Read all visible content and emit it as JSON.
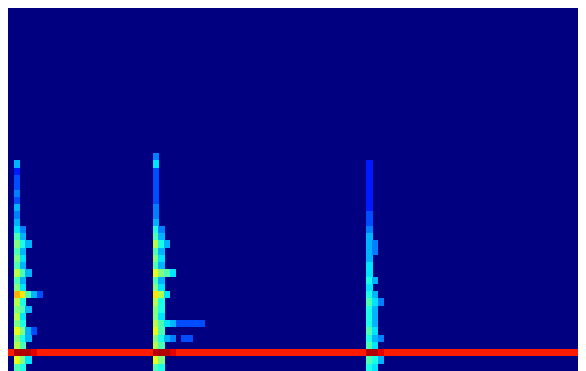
{
  "chart_data": {
    "type": "heatmap",
    "xlim": [
      0,
      100
    ],
    "ylim": [
      0,
      100
    ],
    "tick_labels": false,
    "zlim": [
      0,
      1
    ],
    "cell_width": 1,
    "cell_height": 2,
    "cells": [
      [
        0.5,
        5,
        0.85
      ],
      [
        1.5,
        5,
        0.95
      ],
      [
        2.5,
        5,
        0.95
      ],
      [
        3.5,
        5,
        0.95
      ],
      [
        4.5,
        5,
        0.9
      ],
      [
        5.5,
        5,
        0.85
      ],
      [
        6.5,
        5,
        0.85
      ],
      [
        7.5,
        5,
        0.85
      ],
      [
        8.5,
        5,
        0.85
      ],
      [
        9.5,
        5,
        0.85
      ],
      [
        10.5,
        5,
        0.85
      ],
      [
        11.5,
        5,
        0.85
      ],
      [
        12.5,
        5,
        0.85
      ],
      [
        13.5,
        5,
        0.85
      ],
      [
        14.5,
        5,
        0.85
      ],
      [
        15.5,
        5,
        0.85
      ],
      [
        16.5,
        5,
        0.85
      ],
      [
        17.5,
        5,
        0.85
      ],
      [
        18.5,
        5,
        0.85
      ],
      [
        19.5,
        5,
        0.85
      ],
      [
        20.5,
        5,
        0.85
      ],
      [
        21.5,
        5,
        0.85
      ],
      [
        22.5,
        5,
        0.85
      ],
      [
        23.5,
        5,
        0.85
      ],
      [
        24.5,
        5,
        0.85
      ],
      [
        25.5,
        5,
        0.95
      ],
      [
        26.5,
        5,
        0.95
      ],
      [
        27.5,
        5,
        0.95
      ],
      [
        28.5,
        5,
        0.9
      ],
      [
        29.5,
        5,
        0.85
      ],
      [
        30.5,
        5,
        0.85
      ],
      [
        31.5,
        5,
        0.85
      ],
      [
        32.5,
        5,
        0.85
      ],
      [
        33.5,
        5,
        0.85
      ],
      [
        34.5,
        5,
        0.85
      ],
      [
        35.5,
        5,
        0.85
      ],
      [
        36.5,
        5,
        0.85
      ],
      [
        37.5,
        5,
        0.85
      ],
      [
        38.5,
        5,
        0.85
      ],
      [
        39.5,
        5,
        0.85
      ],
      [
        40.5,
        5,
        0.85
      ],
      [
        41.5,
        5,
        0.85
      ],
      [
        42.5,
        5,
        0.85
      ],
      [
        43.5,
        5,
        0.85
      ],
      [
        44.5,
        5,
        0.85
      ],
      [
        45.5,
        5,
        0.85
      ],
      [
        46.5,
        5,
        0.85
      ],
      [
        47.5,
        5,
        0.85
      ],
      [
        48.5,
        5,
        0.85
      ],
      [
        49.5,
        5,
        0.85
      ],
      [
        50.5,
        5,
        0.85
      ],
      [
        51.5,
        5,
        0.85
      ],
      [
        52.5,
        5,
        0.85
      ],
      [
        53.5,
        5,
        0.85
      ],
      [
        54.5,
        5,
        0.85
      ],
      [
        55.5,
        5,
        0.85
      ],
      [
        56.5,
        5,
        0.85
      ],
      [
        57.5,
        5,
        0.85
      ],
      [
        58.5,
        5,
        0.85
      ],
      [
        59.5,
        5,
        0.85
      ],
      [
        60.5,
        5,
        0.85
      ],
      [
        61.5,
        5,
        0.85
      ],
      [
        62.5,
        5,
        0.95
      ],
      [
        63.5,
        5,
        0.95
      ],
      [
        64.5,
        5,
        0.9
      ],
      [
        65.5,
        5,
        0.85
      ],
      [
        66.5,
        5,
        0.85
      ],
      [
        67.5,
        5,
        0.85
      ],
      [
        68.5,
        5,
        0.85
      ],
      [
        69.5,
        5,
        0.85
      ],
      [
        70.5,
        5,
        0.85
      ],
      [
        71.5,
        5,
        0.85
      ],
      [
        72.5,
        5,
        0.85
      ],
      [
        73.5,
        5,
        0.85
      ],
      [
        74.5,
        5,
        0.85
      ],
      [
        75.5,
        5,
        0.85
      ],
      [
        76.5,
        5,
        0.85
      ],
      [
        77.5,
        5,
        0.85
      ],
      [
        78.5,
        5,
        0.85
      ],
      [
        79.5,
        5,
        0.85
      ],
      [
        80.5,
        5,
        0.85
      ],
      [
        81.5,
        5,
        0.85
      ],
      [
        82.5,
        5,
        0.85
      ],
      [
        83.5,
        5,
        0.85
      ],
      [
        84.5,
        5,
        0.85
      ],
      [
        85.5,
        5,
        0.85
      ],
      [
        86.5,
        5,
        0.85
      ],
      [
        87.5,
        5,
        0.85
      ],
      [
        88.5,
        5,
        0.85
      ],
      [
        89.5,
        5,
        0.85
      ],
      [
        90.5,
        5,
        0.85
      ],
      [
        91.5,
        5,
        0.85
      ],
      [
        92.5,
        5,
        0.85
      ],
      [
        93.5,
        5,
        0.85
      ],
      [
        94.5,
        5,
        0.85
      ],
      [
        95.5,
        5,
        0.85
      ],
      [
        96.5,
        5,
        0.85
      ],
      [
        97.5,
        5,
        0.85
      ],
      [
        98.5,
        5,
        0.85
      ],
      [
        99.5,
        5,
        0.85
      ],
      [
        1.5,
        1,
        0.45
      ],
      [
        1.5,
        3,
        0.6
      ],
      [
        1.5,
        7,
        0.55
      ],
      [
        1.5,
        9,
        0.5
      ],
      [
        1.5,
        11,
        0.6
      ],
      [
        1.5,
        13,
        0.5
      ],
      [
        1.5,
        15,
        0.55
      ],
      [
        1.5,
        17,
        0.5
      ],
      [
        1.5,
        19,
        0.55
      ],
      [
        1.5,
        21,
        0.7
      ],
      [
        1.5,
        23,
        0.5
      ],
      [
        1.5,
        25,
        0.45
      ],
      [
        1.5,
        27,
        0.55
      ],
      [
        1.5,
        29,
        0.45
      ],
      [
        1.5,
        31,
        0.5
      ],
      [
        1.5,
        33,
        0.45
      ],
      [
        1.5,
        35,
        0.5
      ],
      [
        1.5,
        37,
        0.45
      ],
      [
        1.5,
        39,
        0.35
      ],
      [
        1.5,
        41,
        0.3
      ],
      [
        1.5,
        43,
        0.25
      ],
      [
        1.5,
        45,
        0.3
      ],
      [
        1.5,
        47,
        0.2
      ],
      [
        1.5,
        49,
        0.25
      ],
      [
        1.5,
        51,
        0.2
      ],
      [
        1.5,
        53,
        0.2
      ],
      [
        1.5,
        55,
        0.15
      ],
      [
        1.5,
        57,
        0.3
      ],
      [
        2.5,
        1,
        0.4
      ],
      [
        2.5,
        3,
        0.5
      ],
      [
        2.5,
        7,
        0.45
      ],
      [
        2.5,
        9,
        0.4
      ],
      [
        2.5,
        11,
        0.5
      ],
      [
        2.5,
        13,
        0.4
      ],
      [
        2.5,
        15,
        0.35
      ],
      [
        2.5,
        17,
        0.45
      ],
      [
        2.5,
        19,
        0.4
      ],
      [
        2.5,
        21,
        0.65
      ],
      [
        2.5,
        23,
        0.35
      ],
      [
        2.5,
        25,
        0.3
      ],
      [
        2.5,
        27,
        0.45
      ],
      [
        2.5,
        29,
        0.3
      ],
      [
        2.5,
        31,
        0.35
      ],
      [
        2.5,
        33,
        0.3
      ],
      [
        2.5,
        35,
        0.4
      ],
      [
        2.5,
        37,
        0.3
      ],
      [
        2.5,
        39,
        0.25
      ],
      [
        3.5,
        3,
        0.35
      ],
      [
        3.5,
        9,
        0.3
      ],
      [
        3.5,
        11,
        0.3
      ],
      [
        3.5,
        17,
        0.3
      ],
      [
        3.5,
        21,
        0.45
      ],
      [
        3.5,
        27,
        0.3
      ],
      [
        3.5,
        35,
        0.3
      ],
      [
        4.5,
        11,
        0.2
      ],
      [
        4.5,
        21,
        0.3
      ],
      [
        5.5,
        21,
        0.2
      ],
      [
        25.5,
        1,
        0.45
      ],
      [
        25.5,
        3,
        0.6
      ],
      [
        25.5,
        7,
        0.55
      ],
      [
        25.5,
        9,
        0.5
      ],
      [
        25.5,
        11,
        0.6
      ],
      [
        25.5,
        13,
        0.55
      ],
      [
        25.5,
        15,
        0.5
      ],
      [
        25.5,
        17,
        0.5
      ],
      [
        25.5,
        19,
        0.55
      ],
      [
        25.5,
        21,
        0.65
      ],
      [
        25.5,
        23,
        0.5
      ],
      [
        25.5,
        25,
        0.45
      ],
      [
        25.5,
        27,
        0.6
      ],
      [
        25.5,
        29,
        0.45
      ],
      [
        25.5,
        31,
        0.5
      ],
      [
        25.5,
        33,
        0.45
      ],
      [
        25.5,
        35,
        0.55
      ],
      [
        25.5,
        37,
        0.45
      ],
      [
        25.5,
        39,
        0.4
      ],
      [
        25.5,
        41,
        0.3
      ],
      [
        25.5,
        43,
        0.25
      ],
      [
        25.5,
        45,
        0.25
      ],
      [
        25.5,
        47,
        0.2
      ],
      [
        25.5,
        49,
        0.2
      ],
      [
        25.5,
        51,
        0.2
      ],
      [
        25.5,
        53,
        0.2
      ],
      [
        25.5,
        55,
        0.2
      ],
      [
        25.5,
        57,
        0.35
      ],
      [
        25.5,
        59,
        0.25
      ],
      [
        26.5,
        1,
        0.4
      ],
      [
        26.5,
        3,
        0.5
      ],
      [
        26.5,
        7,
        0.45
      ],
      [
        26.5,
        9,
        0.4
      ],
      [
        26.5,
        11,
        0.45
      ],
      [
        26.5,
        13,
        0.45
      ],
      [
        26.5,
        15,
        0.35
      ],
      [
        26.5,
        17,
        0.4
      ],
      [
        26.5,
        19,
        0.4
      ],
      [
        26.5,
        21,
        0.55
      ],
      [
        26.5,
        23,
        0.35
      ],
      [
        26.5,
        25,
        0.3
      ],
      [
        26.5,
        27,
        0.5
      ],
      [
        26.5,
        29,
        0.3
      ],
      [
        26.5,
        31,
        0.35
      ],
      [
        26.5,
        33,
        0.3
      ],
      [
        26.5,
        35,
        0.4
      ],
      [
        26.5,
        37,
        0.3
      ],
      [
        26.5,
        39,
        0.25
      ],
      [
        27.5,
        9,
        0.3
      ],
      [
        27.5,
        13,
        0.35
      ],
      [
        27.5,
        21,
        0.35
      ],
      [
        27.5,
        27,
        0.45
      ],
      [
        27.5,
        35,
        0.3
      ],
      [
        28.5,
        9,
        0.25
      ],
      [
        28.5,
        13,
        0.3
      ],
      [
        28.5,
        27,
        0.35
      ],
      [
        29.5,
        13,
        0.2
      ],
      [
        30.5,
        13,
        0.2
      ],
      [
        31.5,
        13,
        0.2
      ],
      [
        32.5,
        13,
        0.2
      ],
      [
        33.5,
        13,
        0.2
      ],
      [
        30.5,
        9,
        0.2
      ],
      [
        31.5,
        9,
        0.2
      ],
      [
        62.5,
        1,
        0.4
      ],
      [
        62.5,
        3,
        0.45
      ],
      [
        62.5,
        7,
        0.45
      ],
      [
        62.5,
        9,
        0.4
      ],
      [
        62.5,
        11,
        0.45
      ],
      [
        62.5,
        13,
        0.4
      ],
      [
        62.5,
        15,
        0.4
      ],
      [
        62.5,
        17,
        0.4
      ],
      [
        62.5,
        19,
        0.45
      ],
      [
        62.5,
        21,
        0.4
      ],
      [
        62.5,
        23,
        0.35
      ],
      [
        62.5,
        25,
        0.4
      ],
      [
        62.5,
        27,
        0.35
      ],
      [
        62.5,
        29,
        0.35
      ],
      [
        62.5,
        31,
        0.3
      ],
      [
        62.5,
        33,
        0.3
      ],
      [
        62.5,
        35,
        0.3
      ],
      [
        62.5,
        37,
        0.3
      ],
      [
        62.5,
        39,
        0.25
      ],
      [
        62.5,
        41,
        0.2
      ],
      [
        62.5,
        43,
        0.2
      ],
      [
        62.5,
        45,
        0.15
      ],
      [
        62.5,
        47,
        0.15
      ],
      [
        62.5,
        49,
        0.15
      ],
      [
        62.5,
        51,
        0.15
      ],
      [
        62.5,
        53,
        0.15
      ],
      [
        62.5,
        55,
        0.15
      ],
      [
        62.5,
        57,
        0.15
      ],
      [
        63.5,
        1,
        0.35
      ],
      [
        63.5,
        3,
        0.4
      ],
      [
        63.5,
        7,
        0.35
      ],
      [
        63.5,
        9,
        0.3
      ],
      [
        63.5,
        11,
        0.35
      ],
      [
        63.5,
        13,
        0.3
      ],
      [
        63.5,
        15,
        0.3
      ],
      [
        63.5,
        17,
        0.3
      ],
      [
        63.5,
        19,
        0.35
      ],
      [
        63.5,
        21,
        0.3
      ],
      [
        63.5,
        25,
        0.3
      ],
      [
        63.5,
        33,
        0.25
      ],
      [
        63.5,
        35,
        0.25
      ],
      [
        64.5,
        3,
        0.3
      ],
      [
        64.5,
        9,
        0.25
      ],
      [
        64.5,
        19,
        0.25
      ]
    ]
  }
}
